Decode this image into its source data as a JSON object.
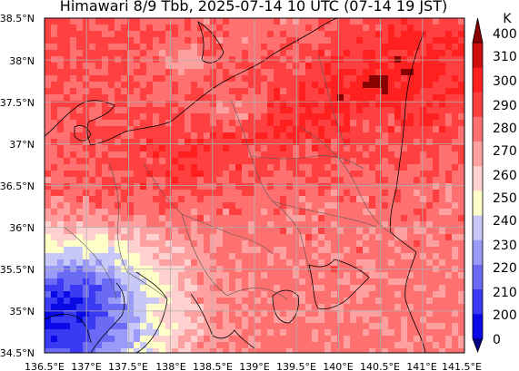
{
  "map": {
    "title": "Himawari 8/9 Tbb, 2025-07-14 10 UTC (07-14 19 JST)",
    "extent": {
      "lon": [
        136.5,
        141.5
      ],
      "lat": [
        34.5,
        38.5
      ]
    },
    "lon_ticks": [
      "136.5°E",
      "137°E",
      "137.5°E",
      "138°E",
      "138.5°E",
      "139°E",
      "139.5°E",
      "140°E",
      "140.5°E",
      "141°E",
      "141.5°E"
    ],
    "lat_ticks": [
      "34.5°N",
      "35°N",
      "35.5°N",
      "36°N",
      "36.5°N",
      "37°N",
      "37.5°N",
      "38°N",
      "38.5°N"
    ],
    "grid": true,
    "variable": "Brightness temperature (Tbb)"
  },
  "colorbar": {
    "unit": "K",
    "ticks": [
      "0",
      "200",
      "210",
      "220",
      "230",
      "240",
      "250",
      "260",
      "270",
      "280",
      "290",
      "300",
      "310",
      "400"
    ],
    "colors": [
      "#00008b",
      "#0a0ae6",
      "#3a3af5",
      "#6a6af5",
      "#9a9af8",
      "#c8c8f8",
      "#ffffc8",
      "#ffd0d0",
      "#ffa0a0",
      "#ff7070",
      "#ff4040",
      "#ff2020",
      "#d01010",
      "#8b0000"
    ]
  }
}
